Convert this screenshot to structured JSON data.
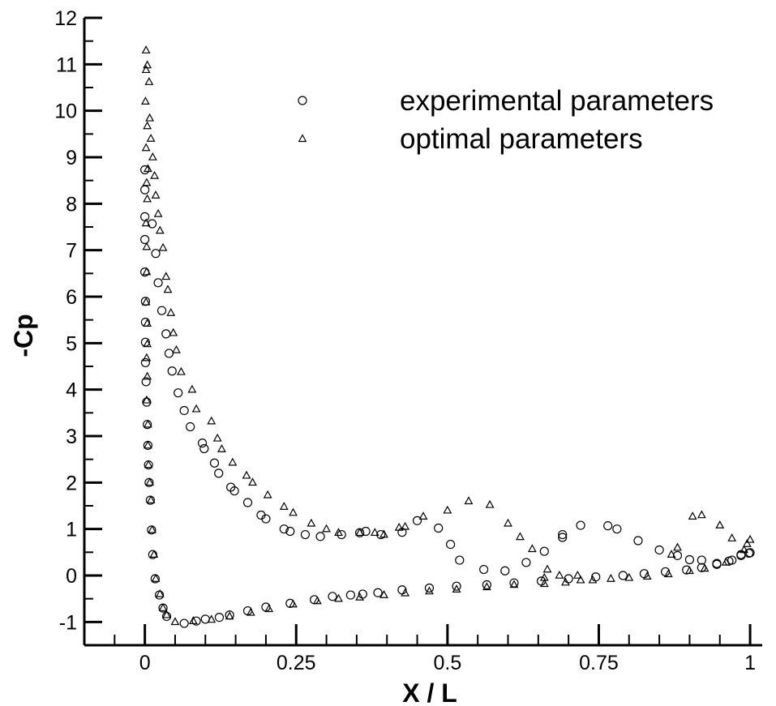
{
  "chart_data": {
    "type": "scatter",
    "title": "",
    "xlabel": "X / L",
    "ylabel": "-Cp",
    "xlim": [
      -0.1,
      1.02
    ],
    "ylim": [
      -1.5,
      12
    ],
    "xticks": [
      0,
      0.25,
      0.5,
      0.75,
      1
    ],
    "xtick_labels": [
      "0",
      "0.25",
      "0.5",
      "0.75",
      "1"
    ],
    "yticks": [
      -1,
      0,
      1,
      2,
      3,
      4,
      5,
      6,
      7,
      8,
      9,
      10,
      11,
      12
    ],
    "ytick_labels": [
      "-1",
      "0",
      "1",
      "2",
      "3",
      "4",
      "5",
      "6",
      "7",
      "8",
      "9",
      "10",
      "11",
      "12"
    ],
    "grid": false,
    "legend_position": "top-right",
    "colors": {
      "axis": "#000000",
      "marker": "#000000",
      "background": "#ffffff"
    },
    "series": [
      {
        "name": "experimental parameters",
        "marker": "circle",
        "points": [
          [
            0.0,
            8.73
          ],
          [
            0.0,
            8.3
          ],
          [
            0.0,
            7.72
          ],
          [
            0.0,
            7.23
          ],
          [
            0.0,
            6.53
          ],
          [
            0.001,
            5.9
          ],
          [
            0.001,
            5.45
          ],
          [
            0.001,
            5.02
          ],
          [
            0.001,
            4.58
          ],
          [
            0.002,
            4.17
          ],
          [
            0.003,
            3.73
          ],
          [
            0.004,
            3.25
          ],
          [
            0.005,
            2.8
          ],
          [
            0.006,
            2.38
          ],
          [
            0.007,
            2.0
          ],
          [
            0.009,
            1.62
          ],
          [
            0.011,
            0.98
          ],
          [
            0.013,
            0.45
          ],
          [
            0.017,
            -0.07
          ],
          [
            0.024,
            -0.42
          ],
          [
            0.03,
            -0.7
          ],
          [
            0.036,
            -0.88
          ],
          [
            0.065,
            -1.03
          ],
          [
            0.085,
            -0.98
          ],
          [
            0.1,
            -0.94
          ],
          [
            0.123,
            -0.9
          ],
          [
            0.14,
            -0.85
          ],
          [
            0.17,
            -0.76
          ],
          [
            0.2,
            -0.68
          ],
          [
            0.24,
            -0.6
          ],
          [
            0.28,
            -0.52
          ],
          [
            0.31,
            -0.45
          ],
          [
            0.34,
            -0.42
          ],
          [
            0.36,
            -0.4
          ],
          [
            0.385,
            -0.37
          ],
          [
            0.425,
            -0.31
          ],
          [
            0.47,
            -0.27
          ],
          [
            0.515,
            -0.23
          ],
          [
            0.565,
            -0.2
          ],
          [
            0.61,
            -0.16
          ],
          [
            0.655,
            -0.12
          ],
          [
            0.7,
            -0.07
          ],
          [
            0.745,
            -0.03
          ],
          [
            0.79,
            0.0
          ],
          [
            0.825,
            0.04
          ],
          [
            0.86,
            0.08
          ],
          [
            0.895,
            0.12
          ],
          [
            0.92,
            0.17
          ],
          [
            0.945,
            0.24
          ],
          [
            0.97,
            0.33
          ],
          [
            0.985,
            0.43
          ],
          [
            0.998,
            0.48
          ],
          [
            0.012,
            7.57
          ],
          [
            0.018,
            6.93
          ],
          [
            0.022,
            6.3
          ],
          [
            0.028,
            5.7
          ],
          [
            0.035,
            5.2
          ],
          [
            0.04,
            4.78
          ],
          [
            0.045,
            4.4
          ],
          [
            0.055,
            3.93
          ],
          [
            0.065,
            3.55
          ],
          [
            0.075,
            3.2
          ],
          [
            0.095,
            2.85
          ],
          [
            0.098,
            2.73
          ],
          [
            0.115,
            2.42
          ],
          [
            0.122,
            2.2
          ],
          [
            0.142,
            1.9
          ],
          [
            0.148,
            1.82
          ],
          [
            0.17,
            1.57
          ],
          [
            0.192,
            1.3
          ],
          [
            0.2,
            1.22
          ],
          [
            0.23,
            1.0
          ],
          [
            0.24,
            0.95
          ],
          [
            0.265,
            0.88
          ],
          [
            0.29,
            0.84
          ],
          [
            0.325,
            0.88
          ],
          [
            0.355,
            0.92
          ],
          [
            0.365,
            0.95
          ],
          [
            0.39,
            0.88
          ],
          [
            0.425,
            0.93
          ],
          [
            0.45,
            1.18
          ],
          [
            0.485,
            1.02
          ],
          [
            0.505,
            0.67
          ],
          [
            0.52,
            0.33
          ],
          [
            0.56,
            0.13
          ],
          [
            0.595,
            0.1
          ],
          [
            0.63,
            0.28
          ],
          [
            0.66,
            0.52
          ],
          [
            0.69,
            0.82
          ],
          [
            0.69,
            0.88
          ],
          [
            0.72,
            1.08
          ],
          [
            0.765,
            1.07
          ],
          [
            0.78,
            1.0
          ],
          [
            0.815,
            0.75
          ],
          [
            0.85,
            0.55
          ],
          [
            0.88,
            0.43
          ],
          [
            0.9,
            0.34
          ],
          [
            0.92,
            0.33
          ],
          [
            0.945,
            0.26
          ],
          [
            0.965,
            0.31
          ],
          [
            0.985,
            0.45
          ],
          [
            1.0,
            0.49
          ]
        ]
      },
      {
        "name": "optimal parameters",
        "marker": "triangle",
        "points": [
          [
            0.002,
            11.3
          ],
          [
            0.004,
            10.98
          ],
          [
            0.002,
            10.88
          ],
          [
            0.007,
            10.62
          ],
          [
            0.001,
            10.2
          ],
          [
            0.008,
            9.84
          ],
          [
            0.004,
            9.67
          ],
          [
            0.01,
            9.4
          ],
          [
            0.002,
            9.2
          ],
          [
            0.013,
            9.0
          ],
          [
            0.005,
            8.75
          ],
          [
            0.016,
            8.6
          ],
          [
            0.003,
            8.45
          ],
          [
            0.018,
            8.18
          ],
          [
            0.004,
            8.1
          ],
          [
            0.022,
            7.78
          ],
          [
            0.002,
            7.58
          ],
          [
            0.025,
            7.42
          ],
          [
            0.003,
            7.07
          ],
          [
            0.03,
            7.05
          ],
          [
            0.003,
            6.53
          ],
          [
            0.035,
            6.43
          ],
          [
            0.038,
            6.15
          ],
          [
            0.002,
            5.88
          ],
          [
            0.043,
            5.65
          ],
          [
            0.004,
            5.42
          ],
          [
            0.047,
            5.22
          ],
          [
            0.004,
            4.98
          ],
          [
            0.052,
            4.85
          ],
          [
            0.003,
            4.68
          ],
          [
            0.06,
            4.38
          ],
          [
            0.004,
            4.28
          ],
          [
            0.078,
            4.0
          ],
          [
            0.003,
            3.77
          ],
          [
            0.085,
            3.58
          ],
          [
            0.005,
            3.25
          ],
          [
            0.11,
            3.32
          ],
          [
            0.005,
            2.8
          ],
          [
            0.12,
            2.95
          ],
          [
            0.127,
            2.72
          ],
          [
            0.145,
            2.43
          ],
          [
            0.006,
            2.38
          ],
          [
            0.168,
            2.15
          ],
          [
            0.008,
            2.0
          ],
          [
            0.178,
            2.0
          ],
          [
            0.01,
            1.62
          ],
          [
            0.203,
            1.73
          ],
          [
            0.23,
            1.48
          ],
          [
            0.245,
            1.35
          ],
          [
            0.012,
            0.98
          ],
          [
            0.275,
            1.12
          ],
          [
            0.3,
            1.0
          ],
          [
            0.32,
            0.92
          ],
          [
            0.355,
            0.92
          ],
          [
            0.38,
            0.92
          ],
          [
            0.395,
            0.88
          ],
          [
            0.42,
            1.03
          ],
          [
            0.43,
            1.05
          ],
          [
            0.46,
            1.27
          ],
          [
            0.5,
            1.4
          ],
          [
            0.535,
            1.6
          ],
          [
            0.57,
            1.52
          ],
          [
            0.6,
            1.12
          ],
          [
            0.62,
            0.83
          ],
          [
            0.64,
            0.57
          ],
          [
            0.665,
            0.13
          ],
          [
            0.685,
            0.0
          ],
          [
            0.015,
            0.45
          ],
          [
            0.018,
            -0.07
          ],
          [
            0.025,
            -0.4
          ],
          [
            0.03,
            -0.7
          ],
          [
            0.036,
            -0.85
          ],
          [
            0.05,
            -1.0
          ],
          [
            0.08,
            -0.98
          ],
          [
            0.11,
            -0.95
          ],
          [
            0.14,
            -0.88
          ],
          [
            0.175,
            -0.8
          ],
          [
            0.205,
            -0.72
          ],
          [
            0.245,
            -0.62
          ],
          [
            0.285,
            -0.55
          ],
          [
            0.32,
            -0.5
          ],
          [
            0.355,
            -0.47
          ],
          [
            0.395,
            -0.42
          ],
          [
            0.43,
            -0.38
          ],
          [
            0.47,
            -0.34
          ],
          [
            0.515,
            -0.3
          ],
          [
            0.565,
            -0.25
          ],
          [
            0.61,
            -0.2
          ],
          [
            0.66,
            -0.18
          ],
          [
            0.695,
            -0.15
          ],
          [
            0.72,
            -0.1
          ],
          [
            0.74,
            -0.1
          ],
          [
            0.77,
            -0.07
          ],
          [
            0.8,
            -0.05
          ],
          [
            0.83,
            -0.02
          ],
          [
            0.865,
            0.03
          ],
          [
            0.87,
            0.45
          ],
          [
            0.88,
            0.6
          ],
          [
            0.9,
            0.1
          ],
          [
            0.905,
            1.27
          ],
          [
            0.92,
            1.3
          ],
          [
            0.925,
            0.15
          ],
          [
            0.95,
            1.08
          ],
          [
            0.96,
            0.28
          ],
          [
            0.97,
            0.8
          ],
          [
            0.99,
            0.55
          ],
          [
            0.995,
            0.68
          ],
          [
            1.0,
            0.77
          ],
          [
            0.66,
            -0.05
          ],
          [
            0.715,
            0.0
          ]
        ]
      }
    ]
  }
}
